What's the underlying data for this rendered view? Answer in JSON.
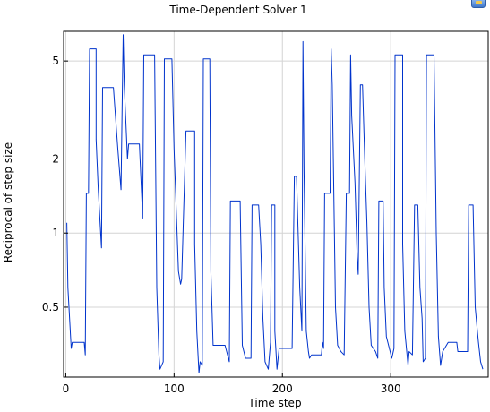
{
  "chart_data": {
    "type": "line",
    "title": "Time-Dependent Solver 1",
    "xlabel": "Time step",
    "ylabel": "Reciprocal of step size",
    "xlim": [
      -2,
      390
    ],
    "ylim": [
      0.26,
      6.6
    ],
    "yscale": "log",
    "grid": true,
    "x_ticks": [
      0,
      100,
      200,
      300
    ],
    "y_ticks": [
      0.5,
      1,
      2,
      5
    ],
    "series": [
      {
        "color": "#0033cc",
        "points": [
          [
            1,
            1.1
          ],
          [
            2,
            0.6
          ],
          [
            5,
            0.34
          ],
          [
            6,
            0.36
          ],
          [
            17,
            0.36
          ],
          [
            18,
            0.32
          ],
          [
            19,
            1.45
          ],
          [
            21,
            1.45
          ],
          [
            22,
            5.6
          ],
          [
            28,
            5.6
          ],
          [
            28,
            2.4
          ],
          [
            30,
            1.5
          ],
          [
            33,
            0.87
          ],
          [
            34,
            3.9
          ],
          [
            44,
            3.9
          ],
          [
            48,
            2.2
          ],
          [
            51,
            1.5
          ],
          [
            52,
            3.2
          ],
          [
            53,
            6.4
          ],
          [
            54,
            4
          ],
          [
            57,
            2.0
          ],
          [
            58,
            2.3
          ],
          [
            68,
            2.3
          ],
          [
            71,
            1.15
          ],
          [
            72,
            5.3
          ],
          [
            82,
            5.3
          ],
          [
            84,
            0.6
          ],
          [
            86,
            0.32
          ],
          [
            87,
            0.28
          ],
          [
            90,
            0.3
          ],
          [
            91,
            5.1
          ],
          [
            98,
            5.1
          ],
          [
            100,
            2.2
          ],
          [
            104,
            0.7
          ],
          [
            106,
            0.62
          ],
          [
            107,
            0.65
          ],
          [
            111,
            2.6
          ],
          [
            119,
            2.6
          ],
          [
            119,
            0.9
          ],
          [
            121,
            0.4
          ],
          [
            123,
            0.27
          ],
          [
            124,
            0.3
          ],
          [
            126,
            0.29
          ],
          [
            127,
            5.1
          ],
          [
            133,
            5.1
          ],
          [
            134,
            0.7
          ],
          [
            136,
            0.35
          ],
          [
            147,
            0.35
          ],
          [
            151,
            0.3
          ],
          [
            152,
            1.35
          ],
          [
            161,
            1.35
          ],
          [
            163,
            0.35
          ],
          [
            166,
            0.31
          ],
          [
            171,
            0.31
          ],
          [
            172,
            1.3
          ],
          [
            178,
            1.3
          ],
          [
            180,
            0.9
          ],
          [
            182,
            0.45
          ],
          [
            184,
            0.3
          ],
          [
            187,
            0.28
          ],
          [
            189,
            0.36
          ],
          [
            190,
            1.3
          ],
          [
            193,
            1.3
          ],
          [
            193,
            0.4
          ],
          [
            195,
            0.28
          ],
          [
            197,
            0.34
          ],
          [
            209,
            0.34
          ],
          [
            211,
            1.7
          ],
          [
            213,
            1.7
          ],
          [
            216,
            0.6
          ],
          [
            218,
            0.4
          ],
          [
            219,
            6.0
          ],
          [
            220,
            1.8
          ],
          [
            222,
            0.4
          ],
          [
            224,
            0.33
          ],
          [
            225,
            0.31
          ],
          [
            227,
            0.32
          ],
          [
            236,
            0.32
          ],
          [
            237,
            0.36
          ],
          [
            238,
            0.34
          ],
          [
            239,
            1.45
          ],
          [
            244,
            1.45
          ],
          [
            245,
            5.6
          ],
          [
            246,
            4
          ],
          [
            247,
            2.0
          ],
          [
            249,
            0.5
          ],
          [
            251,
            0.35
          ],
          [
            254,
            0.33
          ],
          [
            257,
            0.32
          ],
          [
            259,
            1.45
          ],
          [
            262,
            1.45
          ],
          [
            263,
            5.3
          ],
          [
            264,
            3
          ],
          [
            267,
            1.6
          ],
          [
            269,
            0.8
          ],
          [
            270,
            0.68
          ],
          [
            272,
            4.0
          ],
          [
            274,
            4.0
          ],
          [
            276,
            2.0
          ],
          [
            278,
            1.1
          ],
          [
            280,
            0.5
          ],
          [
            282,
            0.35
          ],
          [
            286,
            0.33
          ],
          [
            288,
            0.31
          ],
          [
            289,
            1.35
          ],
          [
            293,
            1.35
          ],
          [
            294,
            0.6
          ],
          [
            296,
            0.38
          ],
          [
            301,
            0.31
          ],
          [
            303,
            0.34
          ],
          [
            304,
            5.3
          ],
          [
            311,
            5.3
          ],
          [
            311,
            0.9
          ],
          [
            313,
            0.4
          ],
          [
            316,
            0.29
          ],
          [
            317,
            0.33
          ],
          [
            320,
            0.32
          ],
          [
            322,
            1.3
          ],
          [
            325,
            1.3
          ],
          [
            327,
            0.6
          ],
          [
            329,
            0.45
          ],
          [
            330,
            0.3
          ],
          [
            332,
            0.31
          ],
          [
            333,
            5.3
          ],
          [
            340,
            5.3
          ],
          [
            342,
            1.0
          ],
          [
            344,
            0.38
          ],
          [
            346,
            0.29
          ],
          [
            348,
            0.33
          ],
          [
            353,
            0.36
          ],
          [
            361,
            0.36
          ],
          [
            362,
            0.33
          ],
          [
            370,
            0.33
          ],
          [
            371,
            0.33
          ],
          [
            372,
            1.3
          ],
          [
            376,
            1.3
          ],
          [
            378,
            0.5
          ],
          [
            380,
            0.4
          ],
          [
            381,
            0.36
          ],
          [
            383,
            0.3
          ],
          [
            385,
            0.28
          ]
        ]
      }
    ]
  }
}
